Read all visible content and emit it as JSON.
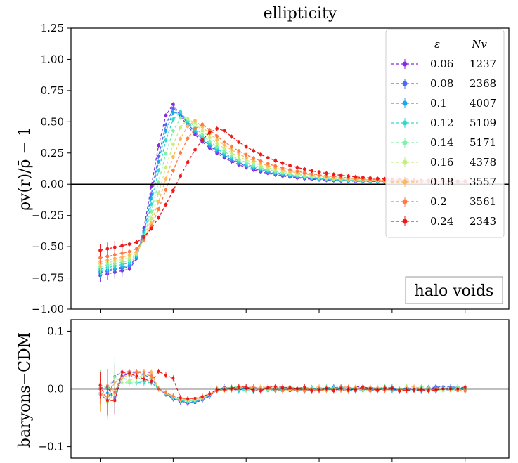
{
  "chart_data": [
    {
      "type": "line",
      "panel": "top",
      "title": "ellipticity",
      "ylabel": "ρv(r)/ρ̄ − 1",
      "xlabel": "",
      "ylim": [
        -1.0,
        1.25
      ],
      "xlim": [
        0.3,
        3.3
      ],
      "yticks": [
        -1.0,
        -0.75,
        -0.5,
        -0.25,
        0.0,
        0.25,
        0.5,
        0.75,
        1.0,
        1.25
      ],
      "ytick_labels": [
        "−1.00",
        "−0.75",
        "−0.50",
        "−0.25",
        "0.00",
        "0.25",
        "0.50",
        "0.75",
        "1.00",
        "1.25"
      ],
      "xticks": [
        0.5,
        1.0,
        1.5,
        2.0,
        2.5,
        3.0
      ],
      "hline": 0.0,
      "annotation": "halo voids",
      "legend": {
        "placement": "top-right",
        "header_eps": "ε",
        "header_n": "Nv",
        "entries": [
          {
            "eps": "0.06",
            "n": "1237",
            "color": "#8a2be2",
            "marker": "circle"
          },
          {
            "eps": "0.08",
            "n": "2368",
            "color": "#4a6cf0",
            "marker": "triangle-down"
          },
          {
            "eps": "0.1",
            "n": "4007",
            "color": "#1aa7ec",
            "marker": "square"
          },
          {
            "eps": "0.12",
            "n": "5109",
            "color": "#2fd9cf",
            "marker": "diamond"
          },
          {
            "eps": "0.14",
            "n": "5171",
            "color": "#7df2a8",
            "marker": "triangle-up"
          },
          {
            "eps": "0.16",
            "n": "4378",
            "color": "#c4ee7e",
            "marker": "diamond"
          },
          {
            "eps": "0.18",
            "n": "3557",
            "color": "#ffb85c",
            "marker": "circle"
          },
          {
            "eps": "0.2",
            "n": "3561",
            "color": "#ff7a45",
            "marker": "triangle-down"
          },
          {
            "eps": "0.24",
            "n": "2343",
            "color": "#ee1a1a",
            "marker": "circle"
          }
        ]
      },
      "series_params": [
        {
          "name": "0.06",
          "inner": -0.73,
          "peak": 0.64,
          "r_peak": 1.0,
          "tail": 3.2
        },
        {
          "name": "0.08",
          "inner": -0.71,
          "peak": 0.62,
          "r_peak": 1.02,
          "tail": 3.1
        },
        {
          "name": "0.1",
          "inner": -0.7,
          "peak": 0.6,
          "r_peak": 1.03,
          "tail": 3.0
        },
        {
          "name": "0.12",
          "inner": -0.68,
          "peak": 0.58,
          "r_peak": 1.05,
          "tail": 2.9
        },
        {
          "name": "0.14",
          "inner": -0.66,
          "peak": 0.55,
          "r_peak": 1.08,
          "tail": 2.8
        },
        {
          "name": "0.16",
          "inner": -0.64,
          "peak": 0.53,
          "r_peak": 1.12,
          "tail": 2.7
        },
        {
          "name": "0.18",
          "inner": -0.62,
          "peak": 0.51,
          "r_peak": 1.16,
          "tail": 2.6
        },
        {
          "name": "0.2",
          "inner": -0.59,
          "peak": 0.48,
          "r_peak": 1.21,
          "tail": 2.5
        },
        {
          "name": "0.24",
          "inner": -0.53,
          "peak": 0.45,
          "r_peak": 1.33,
          "tail": 2.4
        }
      ]
    },
    {
      "type": "line",
      "panel": "bottom",
      "ylabel": "baryons−CDM",
      "ylim": [
        -0.12,
        0.12
      ],
      "yticks": [
        -0.1,
        0.0,
        0.1
      ],
      "ytick_labels": [
        "−0.1",
        "0.0",
        "0.1"
      ],
      "xticks": [
        0.5,
        1.0,
        1.5,
        2.0,
        2.5,
        3.0
      ],
      "hline": 0.0
    }
  ]
}
